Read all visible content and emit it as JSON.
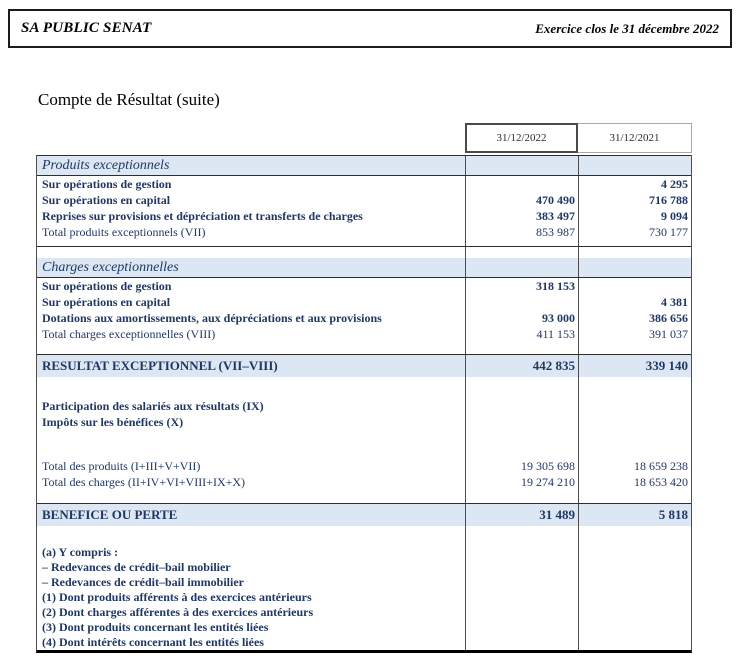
{
  "page_header": {
    "company": "SA PUBLIC SENAT",
    "exercise": "Exercice clos le 31 décembre 2022"
  },
  "document_title": "Compte de Résultat (suite)",
  "colors": {
    "text_navy": "#1f3864",
    "section_band_bg": "#dde7f3",
    "bottom_rule": "#000000"
  },
  "table": {
    "column_headers": [
      "31/12/2022",
      "31/12/2021"
    ],
    "rows": [
      {
        "style": "section",
        "label": "Produits exceptionnels",
        "v2022": "",
        "v2021": ""
      },
      {
        "style": "item",
        "label": "Sur opérations de gestion",
        "v2022": "",
        "v2021": "4 295"
      },
      {
        "style": "item",
        "label": "Sur opérations en capital",
        "v2022": "470 490",
        "v2021": "716 788"
      },
      {
        "style": "item",
        "label": "Reprises sur provisions et dépréciation et transferts de charges",
        "v2022": "383 497",
        "v2021": "9 094"
      },
      {
        "style": "total",
        "label": "Total produits exceptionnels (VII)",
        "v2022": "853 987",
        "v2021": "730 177"
      },
      {
        "style": "spacer-line",
        "label": "",
        "v2022": "",
        "v2021": "",
        "h": 7
      },
      {
        "style": "spacer",
        "label": "",
        "v2022": "",
        "v2021": "",
        "h": 11
      },
      {
        "style": "section-open",
        "label": "Charges exceptionnelles",
        "v2022": "",
        "v2021": ""
      },
      {
        "style": "item",
        "label": "Sur opérations de gestion",
        "v2022": "318 153",
        "v2021": ""
      },
      {
        "style": "item",
        "label": "Sur opérations en capital",
        "v2022": "",
        "v2021": "4 381"
      },
      {
        "style": "item",
        "label": "Dotations aux amortissements, aux dépréciations et aux provisions",
        "v2022": "93 000",
        "v2021": "386 656"
      },
      {
        "style": "total",
        "label": "Total charges exceptionnelles (VIII)",
        "v2022": "411 153",
        "v2021": "391 037"
      },
      {
        "style": "spacer",
        "label": "",
        "v2022": "",
        "v2021": "",
        "h": 12
      },
      {
        "style": "result",
        "label": "RESULTAT EXCEPTIONNEL (VII–VIII)",
        "v2022": "442 835",
        "v2021": "339 140"
      },
      {
        "style": "spacer",
        "label": "",
        "v2022": "",
        "v2021": "",
        "h": 21
      },
      {
        "style": "item",
        "label": "Participation des salariés aux résultats (IX)",
        "v2022": "",
        "v2021": ""
      },
      {
        "style": "item",
        "label": "Impôts sur les bénéfices (X)",
        "v2022": "",
        "v2021": ""
      },
      {
        "style": "spacer",
        "label": "",
        "v2022": "",
        "v2021": "",
        "h": 28
      },
      {
        "style": "total",
        "label": "Total des produits (I+III+V+VII)",
        "v2022": "19 305 698",
        "v2021": "18 659 238"
      },
      {
        "style": "total",
        "label": "Total des charges (II+IV+VI+VIII+IX+X)",
        "v2022": "19 274 210",
        "v2021": "18 653 420"
      },
      {
        "style": "spacer",
        "label": "",
        "v2022": "",
        "v2021": "",
        "h": 13
      },
      {
        "style": "result",
        "label": "BENEFICE OU PERTE",
        "v2022": "31 489",
        "v2021": "5 818"
      },
      {
        "style": "spacer",
        "label": "",
        "v2022": "",
        "v2021": "",
        "h": 19
      },
      {
        "style": "note",
        "label": "(a) Y compris :",
        "v2022": "",
        "v2021": ""
      },
      {
        "style": "note",
        "label": "– Redevances de crédit–bail mobilier",
        "v2022": "",
        "v2021": ""
      },
      {
        "style": "note",
        "label": "– Redevances de crédit–bail immobilier",
        "v2022": "",
        "v2021": ""
      },
      {
        "style": "note",
        "label": "(1) Dont produits afférents à des exercices antérieurs",
        "v2022": "",
        "v2021": ""
      },
      {
        "style": "note",
        "label": "(2) Dont charges afférentes à des exercices antérieurs",
        "v2022": "",
        "v2021": ""
      },
      {
        "style": "note",
        "label": "(3) Dont produits concernant les entités liées",
        "v2022": "",
        "v2021": ""
      },
      {
        "style": "note",
        "label": "(4) Dont intérêts concernant les entités liées",
        "v2022": "",
        "v2021": ""
      }
    ]
  }
}
